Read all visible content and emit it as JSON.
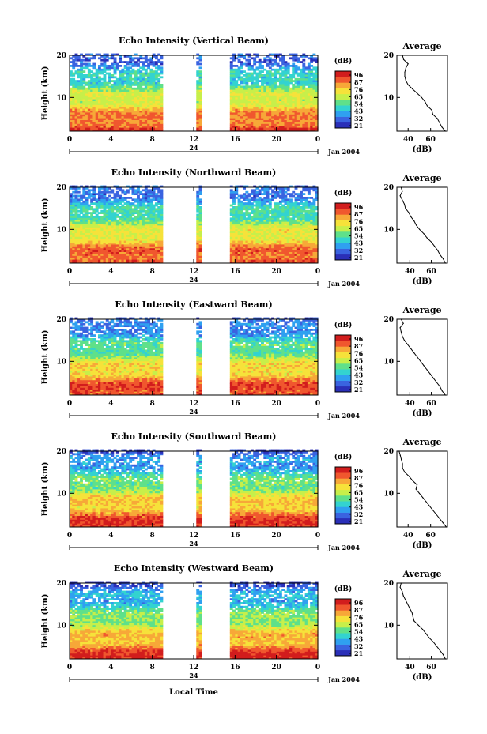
{
  "x_axis_label": "Local Time",
  "date_label": "Jan 2004",
  "date_day": "24",
  "colorbar": {
    "unit_label": "(dB)",
    "tick_labels": [
      "96",
      "87",
      "76",
      "65",
      "54",
      "43",
      "32",
      "21"
    ],
    "colors": [
      "#2a2fb8",
      "#3a63e0",
      "#2fa0f0",
      "#33d3d0",
      "#5fe08a",
      "#c7ef4a",
      "#f6e23a",
      "#f7a838",
      "#f0572e",
      "#d21d1d"
    ]
  },
  "chart_data": [
    {
      "type": "heatmap",
      "title": "Echo Intensity (Vertical Beam)",
      "xlabel": "",
      "ylabel": "Height (km)",
      "xlim": [
        0,
        24
      ],
      "ylim": [
        2,
        20
      ],
      "x_ticks": [
        "0",
        "4",
        "8",
        "12",
        "16",
        "20",
        "0"
      ],
      "y_ticks": [
        "10",
        "20"
      ],
      "data_gaps_hours": [
        [
          0.8,
          1.0
        ],
        [
          9.0,
          12.1
        ],
        [
          12.6,
          15.4
        ]
      ],
      "profile": {
        "title": "Average",
        "xlabel": "(dB)",
        "x_ticks": [
          "40",
          "60"
        ],
        "y_ticks": [
          "10",
          "20"
        ],
        "xlim": [
          30,
          75
        ],
        "height_km": [
          2,
          3,
          4,
          5,
          6,
          7,
          8,
          9,
          10,
          11,
          12,
          13,
          14,
          15,
          16,
          17,
          18,
          19,
          20
        ],
        "db": [
          73,
          70,
          68,
          66,
          62,
          61,
          57,
          55,
          52,
          48,
          44,
          40,
          38,
          37,
          37,
          38,
          40,
          36,
          35
        ]
      }
    },
    {
      "type": "heatmap",
      "title": "Echo Intensity (Northward Beam)",
      "xlabel": "",
      "ylabel": "Height (km)",
      "xlim": [
        0,
        24
      ],
      "ylim": [
        2,
        20
      ],
      "x_ticks": [
        "0",
        "4",
        "8",
        "12",
        "16",
        "20",
        "0"
      ],
      "y_ticks": [
        "10",
        "20"
      ],
      "data_gaps_hours": [
        [
          0.8,
          1.0
        ],
        [
          9.0,
          12.1
        ],
        [
          12.6,
          15.4
        ]
      ],
      "profile": {
        "title": "Average",
        "xlabel": "(dB)",
        "x_ticks": [
          "40",
          "60"
        ],
        "y_ticks": [
          "10",
          "20"
        ],
        "xlim": [
          28,
          75
        ],
        "height_km": [
          2,
          3,
          4,
          5,
          6,
          7,
          8,
          9,
          10,
          11,
          12,
          13,
          14,
          15,
          16,
          17,
          18,
          19,
          20
        ],
        "db": [
          73,
          71,
          68,
          66,
          63,
          60,
          56,
          53,
          49,
          46,
          44,
          41,
          39,
          36,
          35,
          33,
          31,
          33,
          32
        ]
      }
    },
    {
      "type": "heatmap",
      "title": "Echo Intensity (Eastward Beam)",
      "xlabel": "",
      "ylabel": "Height (km)",
      "xlim": [
        0,
        24
      ],
      "ylim": [
        2,
        20
      ],
      "x_ticks": [
        "0",
        "4",
        "8",
        "12",
        "16",
        "20",
        "0"
      ],
      "y_ticks": [
        "10",
        "20"
      ],
      "data_gaps_hours": [
        [
          0.8,
          1.0
        ],
        [
          9.0,
          12.1
        ],
        [
          12.6,
          15.4
        ]
      ],
      "profile": {
        "title": "Average",
        "xlabel": "(dB)",
        "x_ticks": [
          "40",
          "60"
        ],
        "y_ticks": [
          "10",
          "20"
        ],
        "xlim": [
          28,
          75
        ],
        "height_km": [
          2,
          3,
          4,
          5,
          6,
          7,
          8,
          9,
          10,
          11,
          12,
          13,
          14,
          15,
          16,
          17,
          18,
          19,
          20
        ],
        "db": [
          73,
          70,
          68,
          65,
          62,
          59,
          56,
          53,
          50,
          47,
          44,
          41,
          38,
          35,
          33,
          32,
          31,
          34,
          32
        ]
      }
    },
    {
      "type": "heatmap",
      "title": "Echo Intensity (Southward Beam)",
      "xlabel": "",
      "ylabel": "Height (km)",
      "xlim": [
        0,
        24
      ],
      "ylim": [
        2,
        20
      ],
      "x_ticks": [
        "0",
        "4",
        "8",
        "12",
        "16",
        "20",
        "0"
      ],
      "y_ticks": [
        "10",
        "20"
      ],
      "data_gaps_hours": [
        [
          0.8,
          1.0
        ],
        [
          9.0,
          12.1
        ],
        [
          12.6,
          15.4
        ]
      ],
      "profile": {
        "title": "Average",
        "xlabel": "(dB)",
        "x_ticks": [
          "40",
          "60"
        ],
        "y_ticks": [
          "10",
          "20"
        ],
        "xlim": [
          30,
          75
        ],
        "height_km": [
          2,
          3,
          4,
          5,
          6,
          7,
          8,
          9,
          10,
          11,
          12,
          13,
          14,
          15,
          16,
          17,
          18,
          19,
          20
        ],
        "db": [
          74,
          71,
          68,
          65,
          62,
          59,
          56,
          53,
          50,
          47,
          48,
          44,
          41,
          37,
          35,
          35,
          34,
          33,
          32
        ]
      }
    },
    {
      "type": "heatmap",
      "title": "Echo Intensity (Westward Beam)",
      "xlabel": "Local Time",
      "ylabel": "Height (km)",
      "xlim": [
        0,
        24
      ],
      "ylim": [
        2,
        20
      ],
      "x_ticks": [
        "0",
        "4",
        "8",
        "12",
        "16",
        "20",
        "0"
      ],
      "y_ticks": [
        "10",
        "20"
      ],
      "data_gaps_hours": [
        [
          0.8,
          1.0
        ],
        [
          9.0,
          12.1
        ],
        [
          12.6,
          15.4
        ]
      ],
      "profile": {
        "title": "Average",
        "xlabel": "(dB)",
        "x_ticks": [
          "40",
          "60"
        ],
        "y_ticks": [
          "10",
          "20"
        ],
        "xlim": [
          28,
          75
        ],
        "height_km": [
          2,
          3,
          4,
          5,
          6,
          7,
          8,
          9,
          10,
          11,
          12,
          13,
          14,
          15,
          16,
          17,
          18,
          19,
          20
        ],
        "db": [
          73,
          71,
          68,
          65,
          62,
          58,
          55,
          52,
          48,
          44,
          43,
          42,
          40,
          38,
          36,
          34,
          33,
          31,
          32
        ]
      }
    }
  ]
}
